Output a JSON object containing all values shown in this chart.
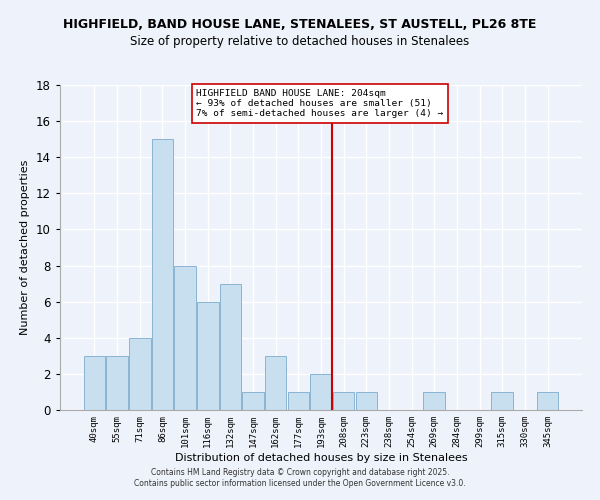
{
  "title1": "HIGHFIELD, BAND HOUSE LANE, STENALEES, ST AUSTELL, PL26 8TE",
  "title2": "Size of property relative to detached houses in Stenalees",
  "xlabel": "Distribution of detached houses by size in Stenalees",
  "ylabel": "Number of detached properties",
  "bar_labels": [
    "40sqm",
    "55sqm",
    "71sqm",
    "86sqm",
    "101sqm",
    "116sqm",
    "132sqm",
    "147sqm",
    "162sqm",
    "177sqm",
    "193sqm",
    "208sqm",
    "223sqm",
    "238sqm",
    "254sqm",
    "269sqm",
    "284sqm",
    "299sqm",
    "315sqm",
    "330sqm",
    "345sqm"
  ],
  "bar_values": [
    3,
    3,
    4,
    15,
    8,
    6,
    7,
    1,
    3,
    1,
    2,
    1,
    1,
    0,
    0,
    1,
    0,
    0,
    1,
    0,
    1
  ],
  "bar_color": "#c8dff0",
  "bar_edge_color": "#8ab4d4",
  "vline_idx": 11,
  "vline_color": "#cc0000",
  "annotation_title": "HIGHFIELD BAND HOUSE LANE: 204sqm",
  "annotation_line1": "← 93% of detached houses are smaller (51)",
  "annotation_line2": "7% of semi-detached houses are larger (4) →",
  "ylim": [
    0,
    18
  ],
  "yticks": [
    0,
    2,
    4,
    6,
    8,
    10,
    12,
    14,
    16,
    18
  ],
  "background_color": "#eef2fa",
  "grid_color": "#ffffff",
  "footer1": "Contains HM Land Registry data © Crown copyright and database right 2025.",
  "footer2": "Contains public sector information licensed under the Open Government Licence v3.0."
}
